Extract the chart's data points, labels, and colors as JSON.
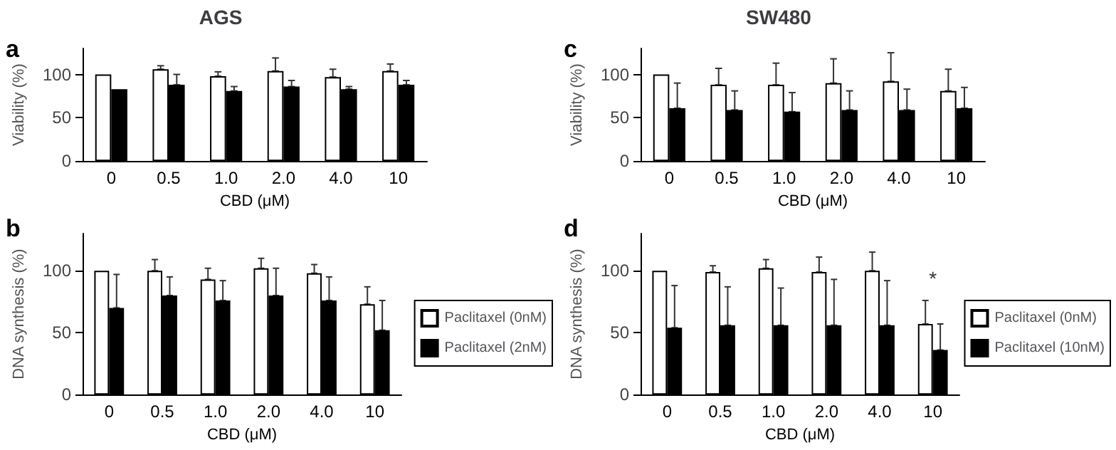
{
  "chart_data": [
    {
      "type": "bar",
      "title": "AGS",
      "xlabel": "CBD (μM)",
      "ylabel": "Viability (%)",
      "annotations": [
        "a"
      ],
      "categories": [
        "0",
        "0.5",
        "1.0",
        "2.0",
        "4.0",
        "10"
      ],
      "ylim": [
        0,
        130
      ],
      "yticks": [
        0,
        50,
        100
      ],
      "grid": false,
      "legend": false,
      "series": [
        {
          "color": "#ffffff",
          "values": [
            100,
            106,
            98,
            104,
            97,
            104
          ],
          "errors": [
            null,
            [
              106,
              110
            ],
            [
              98,
              103
            ],
            [
              104,
              119
            ],
            [
              97,
              106
            ],
            [
              104,
              112
            ]
          ]
        },
        {
          "color": "#000000",
          "values": [
            83,
            88,
            81,
            86,
            83,
            88
          ],
          "errors": [
            null,
            [
              88,
              100
            ],
            [
              81,
              86
            ],
            [
              86,
              93
            ],
            [
              83,
              86
            ],
            [
              88,
              93
            ]
          ]
        }
      ]
    },
    {
      "type": "bar",
      "xlabel": "CBD (μM)",
      "ylabel": "DNA synthesis (%)",
      "annotations": [
        "b"
      ],
      "categories": [
        "0",
        "0.5",
        "1.0",
        "2.0",
        "4.0",
        "10"
      ],
      "ylim": [
        0,
        130
      ],
      "yticks": [
        0,
        50,
        100
      ],
      "grid": false,
      "legend": "right",
      "series": [
        {
          "name": "Paclitaxel (0nM)",
          "color": "#ffffff",
          "values": [
            100,
            100,
            93,
            102,
            98,
            73
          ],
          "errors": [
            null,
            [
              100,
              109
            ],
            [
              93,
              102
            ],
            [
              102,
              110
            ],
            [
              98,
              105
            ],
            [
              73,
              87
            ]
          ]
        },
        {
          "name": "Paclitaxel (2nM)",
          "color": "#000000",
          "values": [
            70,
            80,
            76,
            80,
            76,
            52
          ],
          "errors": [
            [
              70,
              97
            ],
            [
              80,
              95
            ],
            [
              76,
              92
            ],
            [
              80,
              102
            ],
            [
              76,
              95
            ],
            [
              52,
              76
            ]
          ]
        }
      ]
    },
    {
      "type": "bar",
      "title": "SW480",
      "xlabel": "CBD (μM)",
      "ylabel": "Viability (%)",
      "annotations": [
        "c"
      ],
      "categories": [
        "0",
        "0.5",
        "1.0",
        "2.0",
        "4.0",
        "10"
      ],
      "ylim": [
        0,
        130
      ],
      "yticks": [
        0,
        50,
        100
      ],
      "grid": false,
      "legend": false,
      "series": [
        {
          "color": "#ffffff",
          "values": [
            100,
            88,
            88,
            90,
            92,
            81
          ],
          "errors": [
            null,
            [
              88,
              107
            ],
            [
              88,
              113
            ],
            [
              90,
              118
            ],
            [
              92,
              125
            ],
            [
              81,
              106
            ]
          ]
        },
        {
          "color": "#000000",
          "values": [
            61,
            59,
            57,
            59,
            59,
            61
          ],
          "errors": [
            [
              61,
              90
            ],
            [
              59,
              81
            ],
            [
              57,
              79
            ],
            [
              59,
              81
            ],
            [
              59,
              83
            ],
            [
              61,
              85
            ]
          ]
        }
      ]
    },
    {
      "type": "bar",
      "xlabel": "CBD (μM)",
      "ylabel": "DNA synthesis (%)",
      "annotations": [
        "d",
        {
          "text": "*",
          "x": "10",
          "y": 80
        }
      ],
      "categories": [
        "0",
        "0.5",
        "1.0",
        "2.0",
        "4.0",
        "10"
      ],
      "ylim": [
        0,
        130
      ],
      "yticks": [
        0,
        50,
        100
      ],
      "grid": false,
      "legend": "right",
      "series": [
        {
          "name": "Paclitaxel (0nM)",
          "color": "#ffffff",
          "values": [
            100,
            99,
            102,
            99,
            100,
            57
          ],
          "errors": [
            null,
            [
              99,
              104
            ],
            [
              102,
              109
            ],
            [
              99,
              111
            ],
            [
              100,
              115
            ],
            [
              57,
              76
            ]
          ]
        },
        {
          "name": "Paclitaxel (10nM)",
          "color": "#000000",
          "values": [
            54,
            56,
            56,
            56,
            56,
            36
          ],
          "errors": [
            [
              54,
              88
            ],
            [
              56,
              87
            ],
            [
              56,
              86
            ],
            [
              56,
              93
            ],
            [
              56,
              92
            ],
            [
              36,
              57
            ]
          ]
        }
      ]
    }
  ]
}
